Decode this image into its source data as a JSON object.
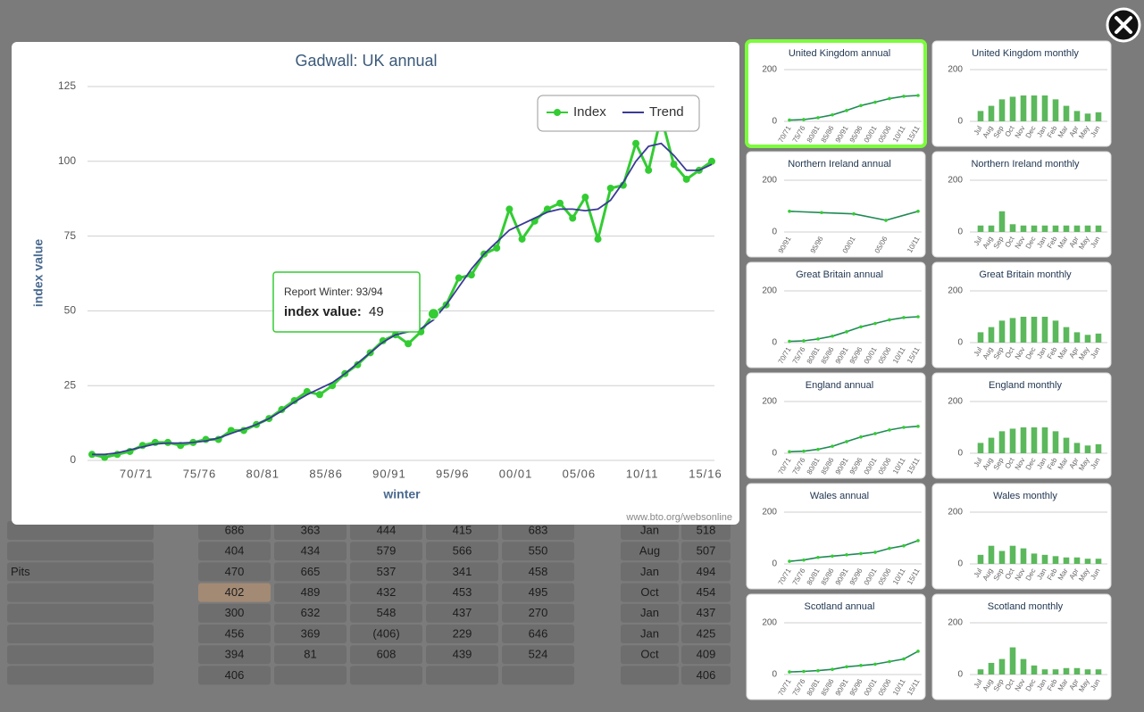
{
  "chart_data": [
    {
      "type": "line",
      "title": "Gadwall: UK annual",
      "xlabel": "winter",
      "ylabel": "index value",
      "categories": [
        null,
        null,
        null,
        null,
        "70/71",
        null,
        null,
        null,
        null,
        "75/76",
        null,
        null,
        null,
        null,
        "80/81",
        null,
        null,
        null,
        null,
        "85/86",
        null,
        null,
        null,
        null,
        "90/91",
        null,
        null,
        null,
        null,
        "95/96",
        null,
        null,
        null,
        null,
        "00/01",
        null,
        null,
        null,
        null,
        "05/06",
        null,
        null,
        null,
        null,
        "10/11",
        null,
        null,
        null,
        null,
        "15/16"
      ],
      "series": [
        {
          "name": "Index",
          "color": "#33cc33",
          "markers": true,
          "values": [
            2,
            1,
            2,
            3,
            5,
            6,
            6,
            5,
            6,
            7,
            7,
            10,
            10,
            12,
            14,
            17,
            20,
            23,
            22,
            25,
            29,
            32,
            36,
            40,
            42,
            39,
            43,
            49,
            52,
            61,
            62,
            69,
            71,
            84,
            74,
            80,
            84,
            86,
            81,
            88,
            74,
            91,
            92,
            106,
            97,
            115,
            99,
            94,
            97,
            100
          ]
        },
        {
          "name": "Trend",
          "color": "#3a3a96",
          "markers": false,
          "values": [
            2,
            2,
            2.5,
            3.5,
            4.5,
            5.5,
            5.8,
            5.8,
            6,
            6.5,
            7.5,
            9,
            10.5,
            12,
            14,
            16.5,
            19.5,
            22,
            24,
            26,
            29,
            32.5,
            36,
            39.5,
            42,
            43,
            44,
            47,
            52,
            58,
            64,
            69,
            73,
            77,
            79,
            81,
            83,
            84,
            84,
            83.5,
            84,
            87,
            93,
            100,
            105,
            106,
            102,
            97,
            97,
            99
          ]
        }
      ],
      "ylim": [
        0,
        125
      ],
      "yticks": [
        0,
        25,
        50,
        75,
        100,
        125
      ],
      "grid": true,
      "legend": "upper right"
    },
    {
      "type": "line",
      "title": "United Kingdom annual",
      "selected": true,
      "color": "#1f8a55",
      "categories": [
        "70/71",
        "75/76",
        "80/81",
        "85/86",
        "90/91",
        "95/96",
        "00/01",
        "05/06",
        "10/11",
        "15/11"
      ],
      "values": [
        5,
        7,
        14,
        25,
        42,
        61,
        74,
        88,
        97,
        100
      ],
      "ylim": [
        0,
        200
      ],
      "yticks": [
        0,
        200
      ],
      "grid": true
    },
    {
      "type": "bar",
      "title": "United Kingdom monthly",
      "color": "#5cb85c",
      "categories": [
        "Jul",
        "Aug",
        "Sep",
        "Oct",
        "Nov",
        "Dec",
        "Jan",
        "Feb",
        "Mar",
        "Apr",
        "May",
        "Jun"
      ],
      "values": [
        40,
        60,
        85,
        95,
        100,
        100,
        100,
        85,
        60,
        40,
        30,
        35
      ],
      "ylim": [
        0,
        200
      ],
      "yticks": [
        0,
        200
      ],
      "grid": true
    },
    {
      "type": "line",
      "title": "Northern Ireland annual",
      "color": "#1f8a55",
      "categories": [
        "90/91",
        "95/96",
        "00/01",
        "05/06",
        "10/11"
      ],
      "values": [
        80,
        75,
        70,
        45,
        80
      ],
      "ylim": [
        0,
        200
      ],
      "yticks": [
        0,
        200
      ],
      "grid": true
    },
    {
      "type": "bar",
      "title": "Northern Ireland monthly",
      "color": "#5cb85c",
      "categories": [
        "Jul",
        "Aug",
        "Sep",
        "Oct",
        "Nov",
        "Dec",
        "Jan",
        "Feb",
        "Mar",
        "Apr",
        "May",
        "Jun"
      ],
      "values": [
        25,
        25,
        80,
        30,
        25,
        25,
        25,
        25,
        25,
        25,
        25,
        25
      ],
      "ylim": [
        0,
        200
      ],
      "yticks": [
        0,
        200
      ],
      "grid": true
    },
    {
      "type": "line",
      "title": "Great Britain annual",
      "color": "#1f8a55",
      "categories": [
        "70/71",
        "75/76",
        "80/81",
        "85/86",
        "90/91",
        "95/96",
        "00/01",
        "05/06",
        "10/11",
        "15/11"
      ],
      "values": [
        5,
        7,
        14,
        25,
        42,
        61,
        74,
        88,
        97,
        100
      ],
      "ylim": [
        0,
        200
      ],
      "yticks": [
        0,
        200
      ],
      "grid": true
    },
    {
      "type": "bar",
      "title": "Great Britain monthly",
      "color": "#5cb85c",
      "categories": [
        "Jul",
        "Aug",
        "Sep",
        "Oct",
        "Nov",
        "Dec",
        "Jan",
        "Feb",
        "Mar",
        "Apr",
        "May",
        "Jun"
      ],
      "values": [
        40,
        60,
        85,
        95,
        100,
        100,
        100,
        85,
        60,
        40,
        30,
        35
      ],
      "ylim": [
        0,
        200
      ],
      "yticks": [
        0,
        200
      ],
      "grid": true
    },
    {
      "type": "line",
      "title": "England annual",
      "color": "#1f8a55",
      "categories": [
        "70/71",
        "75/76",
        "80/81",
        "85/86",
        "90/91",
        "95/96",
        "00/01",
        "05/06",
        "10/11",
        "15/11"
      ],
      "values": [
        6,
        8,
        15,
        27,
        45,
        63,
        76,
        90,
        100,
        104
      ],
      "ylim": [
        0,
        200
      ],
      "yticks": [
        0,
        200
      ],
      "grid": true
    },
    {
      "type": "bar",
      "title": "England monthly",
      "color": "#5cb85c",
      "categories": [
        "Jul",
        "Aug",
        "Sep",
        "Oct",
        "Nov",
        "Dec",
        "Jan",
        "Feb",
        "Mar",
        "Apr",
        "May",
        "Jun"
      ],
      "values": [
        40,
        60,
        85,
        95,
        100,
        100,
        100,
        85,
        60,
        40,
        30,
        35
      ],
      "ylim": [
        0,
        200
      ],
      "yticks": [
        0,
        200
      ],
      "grid": true
    },
    {
      "type": "line",
      "title": "Wales annual",
      "color": "#1f8a55",
      "categories": [
        "70/71",
        "75/76",
        "80/81",
        "85/86",
        "90/91",
        "95/96",
        "00/01",
        "05/06",
        "10/11",
        "15/11"
      ],
      "values": [
        10,
        15,
        25,
        30,
        35,
        40,
        45,
        60,
        70,
        90
      ],
      "ylim": [
        0,
        200
      ],
      "yticks": [
        0,
        200
      ],
      "grid": true
    },
    {
      "type": "bar",
      "title": "Wales monthly",
      "color": "#5cb85c",
      "categories": [
        "Jul",
        "Aug",
        "Sep",
        "Oct",
        "Nov",
        "Dec",
        "Jan",
        "Feb",
        "Mar",
        "Apr",
        "May",
        "Jun"
      ],
      "values": [
        35,
        70,
        50,
        70,
        60,
        40,
        35,
        30,
        25,
        25,
        20,
        20
      ],
      "ylim": [
        0,
        200
      ],
      "yticks": [
        0,
        200
      ],
      "grid": true
    },
    {
      "type": "line",
      "title": "Scotland annual",
      "color": "#1f8a55",
      "categories": [
        "70/71",
        "75/76",
        "80/81",
        "85/86",
        "90/91",
        "95/96",
        "00/01",
        "05/06",
        "10/11",
        "15/11"
      ],
      "values": [
        10,
        12,
        15,
        20,
        30,
        35,
        40,
        50,
        60,
        90
      ],
      "ylim": [
        0,
        200
      ],
      "yticks": [
        0,
        200
      ],
      "grid": true
    },
    {
      "type": "bar",
      "title": "Scotland monthly",
      "color": "#5cb85c",
      "categories": [
        "Jul",
        "Aug",
        "Sep",
        "Oct",
        "Nov",
        "Dec",
        "Jan",
        "Feb",
        "Mar",
        "Apr",
        "May",
        "Jun"
      ],
      "values": [
        20,
        45,
        60,
        105,
        60,
        35,
        20,
        20,
        25,
        25,
        20,
        20
      ],
      "ylim": [
        0,
        200
      ],
      "yticks": [
        0,
        200
      ],
      "grid": true
    }
  ],
  "tooltip": {
    "label": "Report Winter: 93/94",
    "series_label": "index value:",
    "value": 49,
    "point": 27
  },
  "credit": "www.bto.org/websonline",
  "table": {
    "highlighted_cell": {
      "row": 3,
      "col": 1
    },
    "rows": [
      [
        null,
        "686",
        "363",
        "444",
        "415",
        "683",
        "Jan",
        "518"
      ],
      [
        null,
        "404",
        "434",
        "579",
        "566",
        "550",
        "Aug",
        "507"
      ],
      [
        "Pits",
        "470",
        "665",
        "537",
        "341",
        "458",
        "Jan",
        "494"
      ],
      [
        null,
        "402",
        "489",
        "432",
        "453",
        "495",
        "Oct",
        "454"
      ],
      [
        null,
        "300",
        "632",
        "548",
        "437",
        "270",
        "Jan",
        "437"
      ],
      [
        null,
        "456",
        "369",
        "(406)",
        "229",
        "646",
        "Jan",
        "425"
      ],
      [
        null,
        "394",
        "81",
        "608",
        "439",
        "524",
        "Oct",
        "409"
      ],
      [
        null,
        "406",
        null,
        null,
        null,
        null,
        null,
        "406"
      ]
    ]
  }
}
